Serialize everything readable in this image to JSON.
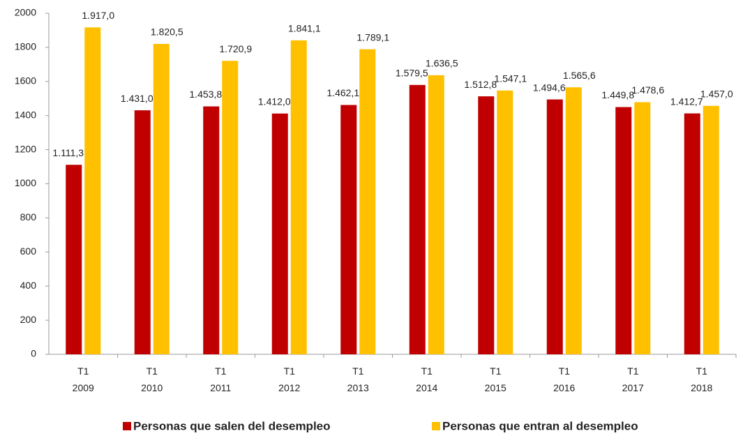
{
  "chart_data": {
    "type": "bar",
    "categories": [
      "T1\n2009",
      "T1\n2010",
      "T1\n2011",
      "T1\n2012",
      "T1\n2013",
      "T1\n2014",
      "T1\n2015",
      "T1\n2016",
      "T1\n2017",
      "T1\n2018"
    ],
    "series": [
      {
        "name": "Personas que salen del desempleo",
        "color": "#c00000",
        "values": [
          1111.3,
          1431.0,
          1453.8,
          1412.0,
          1462.1,
          1579.5,
          1512.8,
          1494.6,
          1449.8,
          1412.7
        ],
        "value_labels": [
          "1.111,3",
          "1.431,0",
          "1.453,8",
          "1.412,0",
          "1.462,1",
          "1.579,5",
          "1.512,8",
          "1.494,6",
          "1.449,8",
          "1.412,7"
        ]
      },
      {
        "name": "Personas que entran al desempleo",
        "color": "#ffc000",
        "values": [
          1917.0,
          1820.5,
          1720.9,
          1841.1,
          1789.1,
          1636.5,
          1547.1,
          1565.6,
          1478.6,
          1457.0
        ],
        "value_labels": [
          "1.917,0",
          "1.820,5",
          "1.720,9",
          "1.841,1",
          "1.789,1",
          "1.636,5",
          "1.547,1",
          "1.565,6",
          "1.478,6",
          "1.457,0"
        ]
      }
    ],
    "ylim": [
      0,
      2000
    ],
    "yticks": [
      0,
      200,
      400,
      600,
      800,
      1000,
      1200,
      1400,
      1600,
      1800,
      2000
    ],
    "grid": false,
    "legend": "bottom"
  }
}
